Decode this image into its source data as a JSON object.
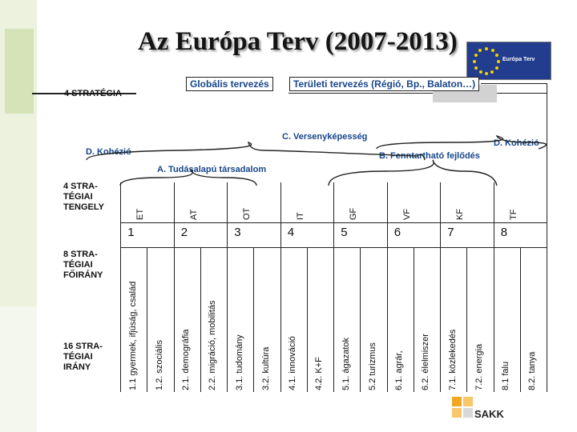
{
  "title": "Az Európa Terv (2007-2013)",
  "logo": {
    "text": "Európa Terv"
  },
  "sakk_logo": {
    "text": "SAKK"
  },
  "global_planning": "Globális tervezés",
  "regional_planning": "Területi tervezés (Régió, Bp., Balaton…)",
  "strategy_label": "4 STRATÉGIA",
  "competitiveness": "C. Versenyképesség",
  "cohesion_left": "D. Kohézió",
  "cohesion_right": "D. Kohézió",
  "sustainable": "B. Fenntartható fejlődés",
  "knowledge": "A. Tudásalapú társadalom",
  "axes_label": "4 STRA-\nTÉGIAI\nTENGELY",
  "main_dir_label": "8 STRA-\nTÉGIAI\nFŐIRÁNY",
  "dir_label": "16 STRA-\nTÉGIAI\nIRÁNY",
  "main_directions": [
    {
      "code": "ET",
      "num": "1"
    },
    {
      "code": "AT",
      "num": "2"
    },
    {
      "code": "OT",
      "num": "3"
    },
    {
      "code": "IT",
      "num": "4"
    },
    {
      "code": "GF",
      "num": "5"
    },
    {
      "code": "VF",
      "num": "6"
    },
    {
      "code": "KF",
      "num": "7"
    },
    {
      "code": "TF",
      "num": "8"
    }
  ],
  "directions": [
    "1.1 gyermek, ifjúság, család",
    "1.2. szociális",
    "2.1. demográfia",
    "2.2. migráció, mobilitás",
    "3.1. tudomány",
    "3.2. kultúra",
    "4.1. innováció",
    "4.2. K+F",
    "5.1. ágazatok",
    "5.2 turizmus",
    "6.1. agrár,",
    "6.2. élelmiszer",
    "7.1. közlekedés",
    "7.2. energia",
    "8.1 falu",
    "8.2. tanya"
  ]
}
